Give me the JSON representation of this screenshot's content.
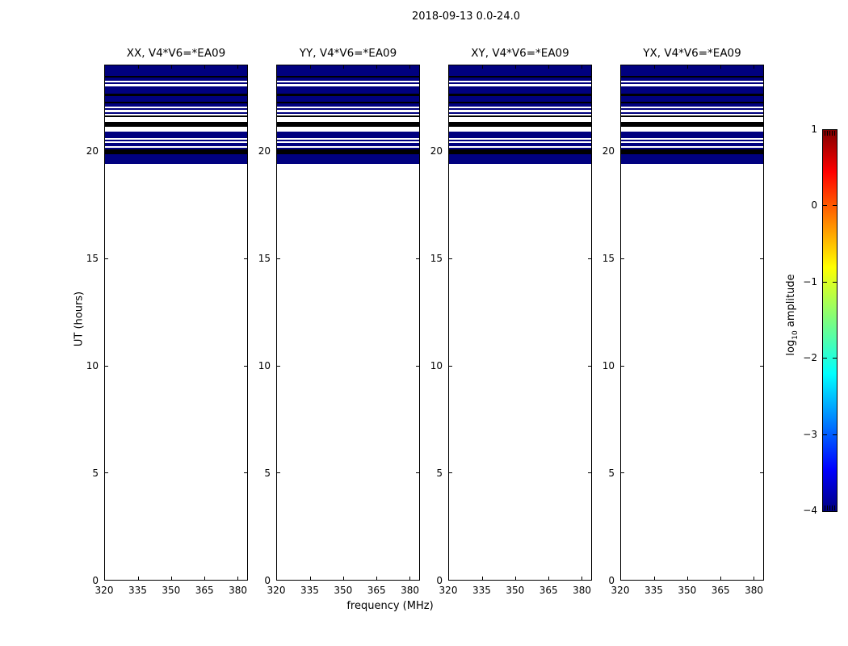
{
  "figure": {
    "suptitle": "2018-09-13 0.0-24.0",
    "xlabel": "frequency (MHz)",
    "ylabel": "UT (hours)"
  },
  "colorbar": {
    "label_log": "log",
    "label_sub": "10",
    "label_rest": " amplitude",
    "tick_labels": [
      "1",
      "0",
      "−1",
      "−2",
      "−3",
      "−4"
    ]
  },
  "chart_data": {
    "type": "heatmap",
    "title": "2018-09-13 0.0-24.0",
    "panel_titles": [
      "XX, V4*V6=*EA09",
      "YY, V4*V6=*EA09",
      "XY, V4*V6=*EA09",
      "YX, V4*V6=*EA09"
    ],
    "x_axis": {
      "label": "frequency (MHz)",
      "ticks": [
        320,
        335,
        350,
        365,
        380
      ],
      "range": [
        320,
        384.5
      ],
      "unit": "MHz"
    },
    "y_axis": {
      "label": "UT (hours)",
      "ticks": [
        0,
        5,
        10,
        15,
        20
      ],
      "tick_order_top_to_bottom": [
        20,
        15,
        10,
        5,
        0
      ],
      "range": [
        0,
        24
      ],
      "unit": "hours"
    },
    "colorbar": {
      "label": "log10 amplitude",
      "ticks": [
        1,
        0,
        -1,
        -2,
        -3,
        -4
      ],
      "range": [
        -4,
        1
      ],
      "colormap": "jet"
    },
    "colors": {
      "band_blue": "#00007f",
      "band_black": "#000000",
      "background": "#ffffff"
    },
    "observation": "All four panels show identical horizontal banding spanning the full frequency range; data present only between UT ~19.4 and 24.0 (blue = minimum of color scale ~ -4, black and white gap stripes interleaved); rest of the plot is empty.",
    "bands_ut": [
      [
        24.0,
        23.51,
        "blue"
      ],
      [
        23.51,
        23.44,
        "black"
      ],
      [
        23.44,
        23.29,
        "blue"
      ],
      [
        23.29,
        23.21,
        "white"
      ],
      [
        23.21,
        23.14,
        "blue"
      ],
      [
        23.14,
        23.02,
        "white"
      ],
      [
        23.02,
        22.69,
        "blue"
      ],
      [
        22.69,
        22.57,
        "black"
      ],
      [
        22.57,
        22.31,
        "blue"
      ],
      [
        22.31,
        22.23,
        "black"
      ],
      [
        22.23,
        22.08,
        "blue"
      ],
      [
        22.08,
        22.01,
        "white"
      ],
      [
        22.01,
        21.93,
        "blue"
      ],
      [
        21.93,
        21.82,
        "white"
      ],
      [
        21.82,
        21.75,
        "blue"
      ],
      [
        21.75,
        21.67,
        "white"
      ],
      [
        21.67,
        21.6,
        "black"
      ],
      [
        21.6,
        21.37,
        "white"
      ],
      [
        21.37,
        21.15,
        "black"
      ],
      [
        21.15,
        20.92,
        "white"
      ],
      [
        20.92,
        20.62,
        "blue"
      ],
      [
        20.62,
        20.55,
        "white"
      ],
      [
        20.55,
        20.47,
        "blue"
      ],
      [
        20.47,
        20.4,
        "white"
      ],
      [
        20.4,
        20.24,
        "blue"
      ],
      [
        20.24,
        20.17,
        "white"
      ],
      [
        20.17,
        20.09,
        "blue"
      ],
      [
        20.09,
        19.87,
        "black"
      ],
      [
        19.87,
        19.42,
        "blue"
      ]
    ],
    "jet_gradient_stops": [
      [
        0,
        "#00007f"
      ],
      [
        0.11,
        "#0000ff"
      ],
      [
        0.36,
        "#00ffff"
      ],
      [
        0.5,
        "#7cfd7f"
      ],
      [
        0.64,
        "#ffff00"
      ],
      [
        0.89,
        "#ff0000"
      ],
      [
        1,
        "#7f0000"
      ]
    ]
  }
}
